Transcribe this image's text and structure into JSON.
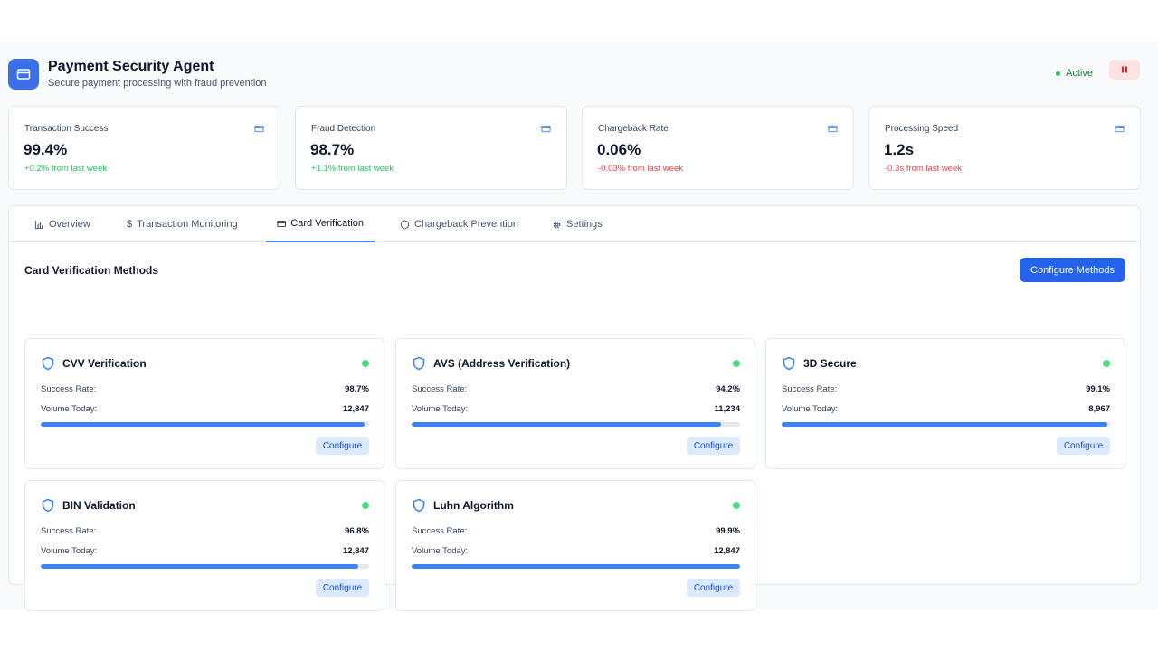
{
  "header": {
    "title": "Payment Security Agent",
    "subtitle": "Secure payment processing with fraud prevention",
    "status": "Active",
    "colors": {
      "accent": "#3b6ee8",
      "status": "#22c55e",
      "pause_bg": "#fde2e2"
    }
  },
  "metrics": [
    {
      "label": "Transaction Success",
      "value": "99.4%",
      "change": "+0.2% from last week",
      "trend": "up",
      "icon": "credit-card-icon"
    },
    {
      "label": "Fraud Detection",
      "value": "98.7%",
      "change": "+1.1% from last week",
      "trend": "up",
      "icon": "credit-card-icon"
    },
    {
      "label": "Chargeback Rate",
      "value": "0.06%",
      "change": "-0.03% from last week",
      "trend": "down",
      "icon": "credit-card-icon"
    },
    {
      "label": "Processing Speed",
      "value": "1.2s",
      "change": "-0.3s from last week",
      "trend": "down",
      "icon": "credit-card-icon"
    }
  ],
  "tabs": [
    {
      "label": "Overview",
      "icon": "bar-chart-icon"
    },
    {
      "label": "Transaction Monitoring",
      "icon": "dollar-icon"
    },
    {
      "label": "Card Verification",
      "icon": "credit-card-icon",
      "active": true
    },
    {
      "label": "Chargeback Prevention",
      "icon": "shield-icon"
    },
    {
      "label": "Settings",
      "icon": "gear-icon"
    }
  ],
  "section": {
    "title": "Card Verification Methods",
    "button_label": "Configure Methods"
  },
  "labels": {
    "success_rate": "Success Rate:",
    "volume_today": "Volume Today:",
    "configure": "Configure"
  },
  "methods": [
    {
      "name": "CVV Verification",
      "success_rate": "98.7%",
      "volume": "12,847",
      "progress": 0.987
    },
    {
      "name": "AVS (Address Verification)",
      "success_rate": "94.2%",
      "volume": "11,234",
      "progress": 0.942
    },
    {
      "name": "3D Secure",
      "success_rate": "99.1%",
      "volume": "8,967",
      "progress": 0.991
    },
    {
      "name": "BIN Validation",
      "success_rate": "96.8%",
      "volume": "12,847",
      "progress": 0.968
    },
    {
      "name": "Luhn Algorithm",
      "success_rate": "99.9%",
      "volume": "12,847",
      "progress": 0.999
    }
  ]
}
